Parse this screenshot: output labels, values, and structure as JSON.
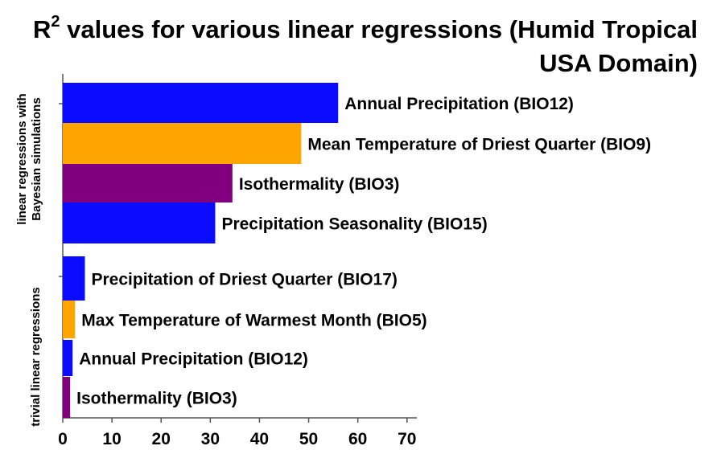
{
  "chart_data": {
    "type": "bar",
    "orientation": "horizontal",
    "title_prefix": "R",
    "title_sup": "2",
    "title_rest": " values for various linear regressions (Humid Tropical USA Domain)",
    "groups": [
      {
        "label": "linear regressions with Bayesian simulations",
        "label_lines": [
          "linear regressions with",
          "Bayesian simulations"
        ],
        "bars": [
          {
            "label": "Annual Precipitation (BIO12)",
            "value": 56,
            "color": "#0b0bff"
          },
          {
            "label": "Mean Temperature of Driest Quarter (BIO9)",
            "value": 48.5,
            "color": "#ffa500"
          },
          {
            "label": "Isothermality (BIO3)",
            "value": 34.5,
            "color": "#800080"
          },
          {
            "label": "Precipitation Seasonality (BIO15)",
            "value": 31,
            "color": "#0b0bff"
          }
        ]
      },
      {
        "label": "trivial linear regressions",
        "label_lines": [
          "trivial linear regressions"
        ],
        "bars": [
          {
            "label": "Precipitation of Driest Quarter (BIO17)",
            "value": 4.5,
            "color": "#0b0bff"
          },
          {
            "label": "Max Temperature of Warmest Month (BIO5)",
            "value": 2.5,
            "color": "#ffa500"
          },
          {
            "label": "Annual Precipitation (BIO12)",
            "value": 2,
            "color": "#0b0bff"
          },
          {
            "label": "Isothermality (BIO3)",
            "value": 1.5,
            "color": "#800080"
          }
        ]
      }
    ],
    "xticks": [
      0,
      10,
      20,
      30,
      40,
      50,
      60,
      70
    ],
    "xlim": [
      0,
      72
    ],
    "grid": false,
    "legend": "none"
  }
}
